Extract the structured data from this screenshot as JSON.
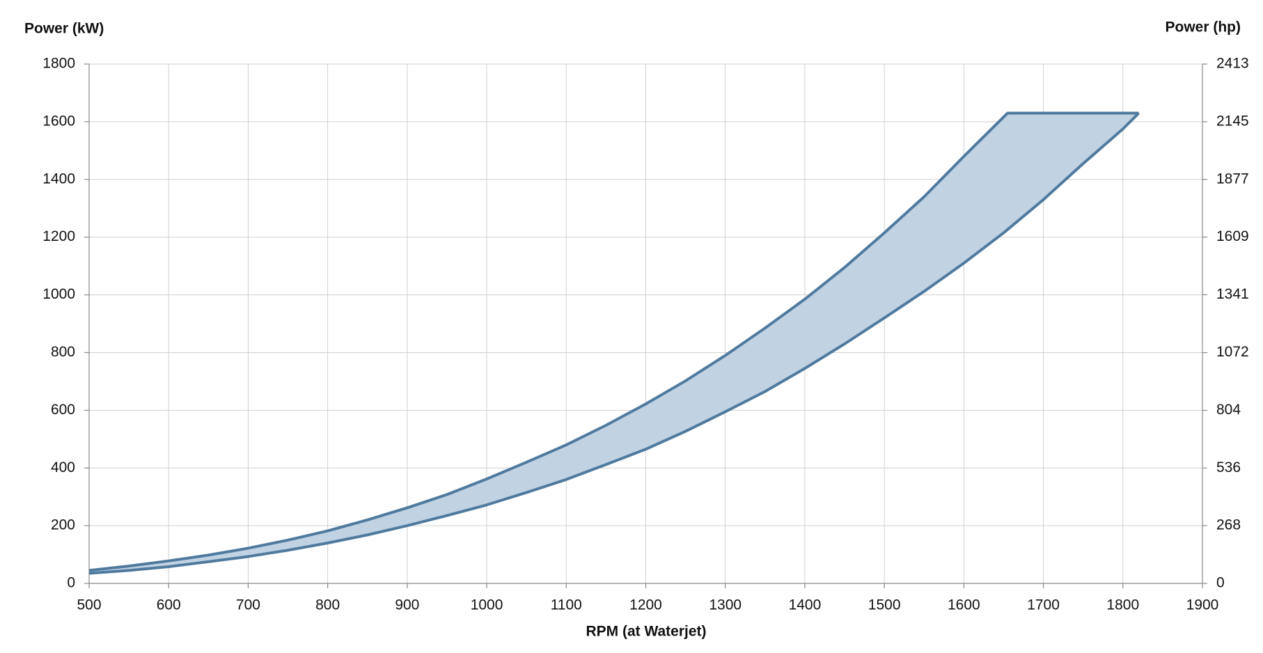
{
  "chart_data": {
    "type": "band",
    "y_label": "Power (kW)",
    "y2_label": "Power (hp)",
    "x_label": "RPM (at Waterjet)",
    "xlim": [
      500,
      1900
    ],
    "xticks": [
      500,
      600,
      700,
      800,
      900,
      1000,
      1100,
      1200,
      1300,
      1400,
      1500,
      1600,
      1700,
      1800,
      1900
    ],
    "ylim": [
      0,
      1800
    ],
    "yticks": [
      0,
      200,
      400,
      600,
      800,
      1000,
      1200,
      1400,
      1600,
      1800
    ],
    "y2lim": [
      0,
      2413
    ],
    "y2ticks": [
      0,
      268,
      536,
      804,
      1072,
      1341,
      1609,
      1877,
      2145,
      2413
    ],
    "grid": true,
    "fill_color": "#c1d2e3",
    "series": [
      {
        "color": "#4f7a9e",
        "x": [
          500,
          550,
          600,
          650,
          700,
          750,
          800,
          850,
          900,
          950,
          1000,
          1050,
          1100,
          1150,
          1200,
          1250,
          1300,
          1350,
          1400,
          1450,
          1500,
          1550,
          1600,
          1655,
          1820
        ],
        "values": [
          45,
          60,
          78,
          98,
          122,
          150,
          182,
          220,
          262,
          308,
          362,
          420,
          480,
          548,
          622,
          702,
          790,
          885,
          985,
          1095,
          1215,
          1340,
          1480,
          1630,
          1630
        ]
      },
      {
        "color": "#4f7a9e",
        "x": [
          500,
          550,
          600,
          650,
          700,
          750,
          800,
          850,
          900,
          950,
          1000,
          1050,
          1100,
          1150,
          1200,
          1250,
          1300,
          1350,
          1400,
          1450,
          1500,
          1550,
          1600,
          1650,
          1700,
          1750,
          1800,
          1820
        ],
        "values": [
          35,
          45,
          58,
          75,
          93,
          115,
          140,
          168,
          200,
          235,
          272,
          315,
          360,
          412,
          465,
          527,
          595,
          665,
          745,
          830,
          920,
          1012,
          1110,
          1215,
          1330,
          1455,
          1575,
          1630
        ]
      }
    ]
  }
}
